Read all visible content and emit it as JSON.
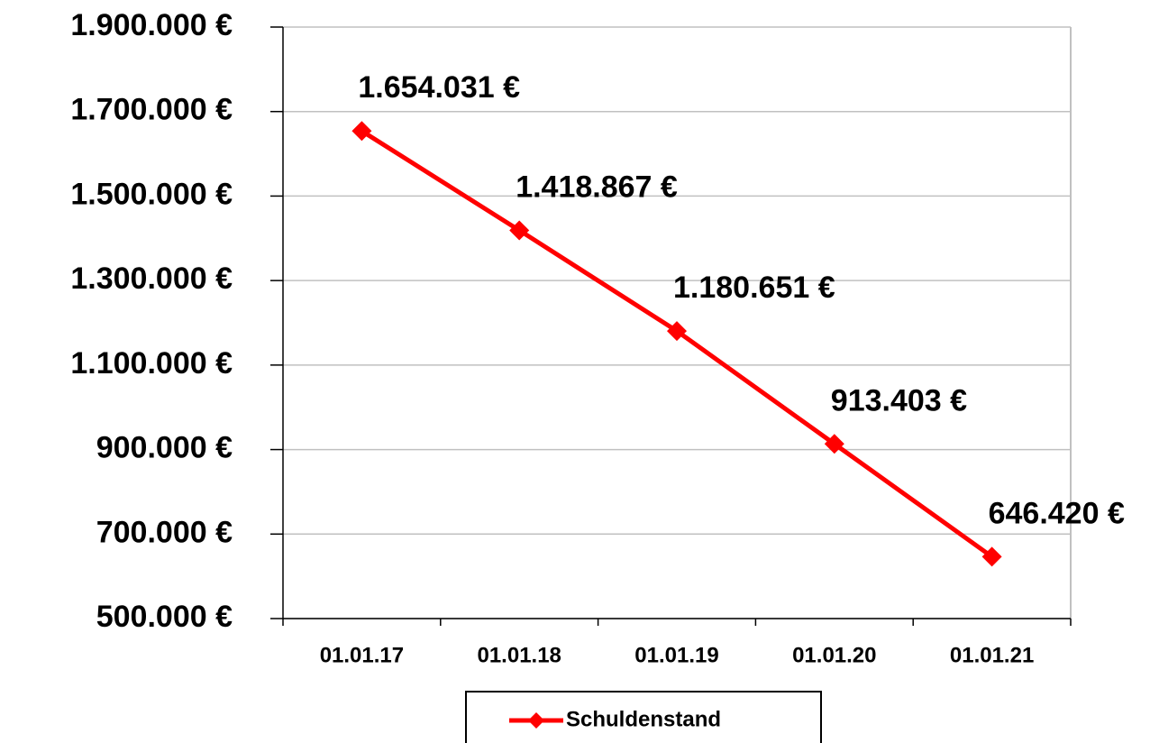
{
  "chart_data": {
    "type": "line",
    "categories": [
      "01.01.17",
      "01.01.18",
      "01.01.19",
      "01.01.20",
      "01.01.21"
    ],
    "series": [
      {
        "name": "Schuldenstand",
        "color": "#ff0000",
        "values": [
          1654031,
          1418867,
          1180651,
          913403,
          646420
        ],
        "value_labels": [
          "1.654.031 €",
          "1.418.867 €",
          "1.180.651 €",
          "913.403 €",
          "646.420 €"
        ]
      }
    ],
    "ylim": [
      500000,
      1900000
    ],
    "yticks": [
      {
        "value": 500000,
        "label": "500.000 €"
      },
      {
        "value": 700000,
        "label": "700.000 €"
      },
      {
        "value": 900000,
        "label": "900.000 €"
      },
      {
        "value": 1100000,
        "label": "1.100.000 €"
      },
      {
        "value": 1300000,
        "label": "1.300.000 €"
      },
      {
        "value": 1500000,
        "label": "1.500.000 €"
      },
      {
        "value": 1700000,
        "label": "1.700.000 €"
      },
      {
        "value": 1900000,
        "label": "1.900.000 €"
      }
    ],
    "grid": true,
    "legend": "bottom"
  }
}
